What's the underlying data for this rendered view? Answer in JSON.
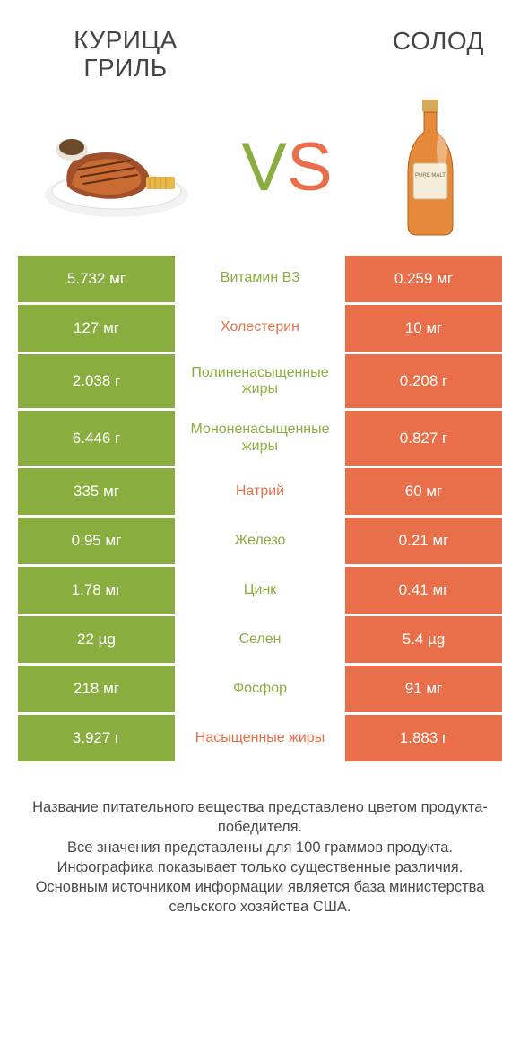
{
  "colors": {
    "left": "#8aad3f",
    "right": "#e86f4a",
    "left_text": "#8aad3f",
    "right_text": "#e86f4a",
    "footer_text": "#4a4a4a",
    "title_text": "#444444",
    "bg": "#ffffff"
  },
  "header": {
    "left_title": "КУРИЦА ГРИЛЬ",
    "right_title": "СОЛОД",
    "vs_v": "V",
    "vs_s": "S"
  },
  "rows": [
    {
      "left": "5.732 мг",
      "label": "Витамин B3",
      "right": "0.259 мг",
      "winner": "left"
    },
    {
      "left": "127 мг",
      "label": "Холестерин",
      "right": "10 мг",
      "winner": "right"
    },
    {
      "left": "2.038 г",
      "label": "Полиненасыщенные жиры",
      "right": "0.208 г",
      "winner": "left"
    },
    {
      "left": "6.446 г",
      "label": "Мононенасыщенные жиры",
      "right": "0.827 г",
      "winner": "left"
    },
    {
      "left": "335 мг",
      "label": "Натрий",
      "right": "60 мг",
      "winner": "right"
    },
    {
      "left": "0.95 мг",
      "label": "Железо",
      "right": "0.21 мг",
      "winner": "left"
    },
    {
      "left": "1.78 мг",
      "label": "Цинк",
      "right": "0.41 мг",
      "winner": "left"
    },
    {
      "left": "22 µg",
      "label": "Селен",
      "right": "5.4 µg",
      "winner": "left"
    },
    {
      "left": "218 мг",
      "label": "Фосфор",
      "right": "91 мг",
      "winner": "left"
    },
    {
      "left": "3.927 г",
      "label": "Насыщенные жиры",
      "right": "1.883 г",
      "winner": "right"
    }
  ],
  "footer": {
    "lines": [
      "Название питательного вещества представлено цветом продукта-победителя.",
      "Все значения представлены для 100 граммов продукта.",
      "Инфографика показывает только существенные различия.",
      "Основным источником информации является база министерства сельского хозяйства США."
    ]
  }
}
